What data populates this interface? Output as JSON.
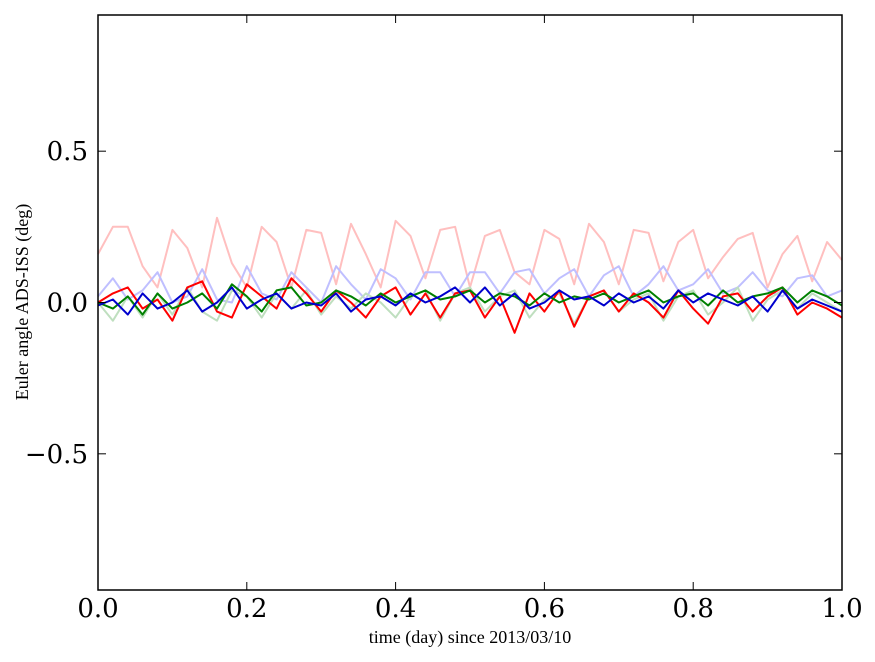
{
  "chart_data": {
    "type": "line",
    "title": "",
    "xlabel": "time (day) since 2013/03/10",
    "ylabel": "Euler angle ADS-ISS (deg)",
    "xlim": [
      0.0,
      1.0
    ],
    "ylim": [
      -0.95,
      0.95
    ],
    "grid": false,
    "legend": "none",
    "x_ticks": [
      0.0,
      0.2,
      0.4,
      0.6,
      0.8,
      1.0
    ],
    "x_tick_labels": [
      "0.0",
      "0.2",
      "0.4",
      "0.6",
      "0.8",
      "1.0"
    ],
    "y_ticks": [
      -0.5,
      0.0,
      0.5
    ],
    "y_tick_labels": [
      "−0.5",
      "0.0",
      "0.5"
    ],
    "x": [
      0.0,
      0.02,
      0.04,
      0.06,
      0.08,
      0.1,
      0.12,
      0.14,
      0.16,
      0.18,
      0.2,
      0.22,
      0.24,
      0.26,
      0.28,
      0.3,
      0.32,
      0.34,
      0.36,
      0.38,
      0.4,
      0.42,
      0.44,
      0.46,
      0.48,
      0.5,
      0.52,
      0.54,
      0.56,
      0.58,
      0.6,
      0.62,
      0.64,
      0.66,
      0.68,
      0.7,
      0.72,
      0.74,
      0.76,
      0.78,
      0.8,
      0.82,
      0.84,
      0.86,
      0.88,
      0.9,
      0.92,
      0.94,
      0.96,
      0.98,
      1.0
    ],
    "series": [
      {
        "color": "#ffbfbf",
        "values": [
          0.16,
          0.25,
          0.25,
          0.12,
          0.05,
          0.24,
          0.18,
          0.05,
          0.28,
          0.13,
          0.05,
          0.25,
          0.2,
          0.05,
          0.24,
          0.23,
          0.06,
          0.26,
          0.16,
          0.05,
          0.27,
          0.22,
          0.08,
          0.24,
          0.25,
          0.05,
          0.22,
          0.24,
          0.1,
          0.06,
          0.24,
          0.21,
          0.06,
          0.26,
          0.2,
          0.06,
          0.24,
          0.23,
          0.07,
          0.2,
          0.24,
          0.08,
          0.15,
          0.21,
          0.23,
          0.05,
          0.16,
          0.22,
          0.07,
          0.2,
          0.14
        ]
      },
      {
        "color": "#bfbfff",
        "values": [
          0.02,
          0.08,
          0.01,
          0.04,
          0.1,
          0.0,
          0.02,
          0.11,
          0.01,
          0.0,
          0.12,
          0.03,
          0.01,
          0.1,
          0.05,
          0.0,
          0.12,
          0.06,
          0.01,
          0.11,
          0.08,
          0.01,
          0.1,
          0.1,
          0.02,
          0.1,
          0.1,
          0.03,
          0.1,
          0.11,
          0.03,
          0.08,
          0.11,
          0.02,
          0.09,
          0.12,
          0.02,
          0.06,
          0.12,
          0.04,
          0.06,
          0.11,
          0.03,
          0.05,
          0.1,
          0.04,
          0.02,
          0.08,
          0.09,
          0.02,
          0.04
        ]
      },
      {
        "color": "#bfdfbf",
        "values": [
          0.0,
          -0.06,
          0.02,
          -0.05,
          0.03,
          -0.04,
          0.05,
          -0.03,
          -0.06,
          0.04,
          0.02,
          -0.05,
          0.03,
          -0.02,
          0.04,
          -0.04,
          0.02,
          -0.02,
          0.03,
          0.0,
          -0.05,
          0.02,
          0.04,
          -0.06,
          0.03,
          0.05,
          -0.03,
          0.02,
          0.04,
          -0.05,
          0.01,
          0.03,
          -0.07,
          0.02,
          0.04,
          -0.03,
          0.01,
          0.03,
          -0.06,
          0.02,
          0.04,
          -0.04,
          0.0,
          0.05,
          -0.06,
          0.01,
          0.04,
          -0.02,
          0.03,
          0.0,
          -0.03
        ]
      },
      {
        "color": "#ff0000",
        "values": [
          0.0,
          0.03,
          0.05,
          -0.02,
          0.01,
          -0.06,
          0.05,
          0.07,
          -0.03,
          -0.05,
          0.06,
          0.02,
          -0.02,
          0.08,
          0.03,
          -0.03,
          0.04,
          0.0,
          -0.05,
          0.02,
          0.05,
          -0.04,
          0.03,
          -0.05,
          0.03,
          0.04,
          -0.05,
          0.02,
          -0.1,
          0.03,
          -0.03,
          0.04,
          -0.08,
          0.02,
          0.04,
          -0.03,
          0.03,
          0.0,
          -0.05,
          0.04,
          -0.02,
          -0.07,
          0.02,
          0.03,
          -0.03,
          0.02,
          0.05,
          -0.04,
          0.0,
          -0.02,
          -0.05
        ]
      },
      {
        "color": "#008000",
        "values": [
          0.0,
          -0.02,
          0.02,
          -0.04,
          0.03,
          -0.02,
          0.0,
          0.03,
          -0.02,
          0.06,
          0.02,
          -0.03,
          0.04,
          0.05,
          -0.01,
          0.0,
          0.04,
          0.02,
          -0.01,
          0.03,
          0.0,
          0.02,
          0.04,
          0.01,
          0.02,
          0.04,
          0.0,
          0.03,
          0.02,
          -0.01,
          0.03,
          0.0,
          0.02,
          0.01,
          0.03,
          0.0,
          0.02,
          0.04,
          0.0,
          0.02,
          0.03,
          -0.01,
          0.04,
          0.0,
          0.02,
          0.03,
          0.05,
          0.0,
          0.04,
          0.02,
          -0.01
        ]
      },
      {
        "color": "#0000cd",
        "values": [
          -0.01,
          0.01,
          -0.04,
          0.03,
          -0.02,
          0.0,
          0.04,
          -0.03,
          0.0,
          0.05,
          -0.02,
          0.01,
          0.03,
          -0.02,
          0.0,
          -0.01,
          0.03,
          -0.03,
          0.01,
          0.02,
          -0.01,
          0.03,
          0.0,
          0.02,
          0.05,
          0.0,
          0.05,
          -0.01,
          0.03,
          -0.02,
          0.0,
          0.04,
          0.01,
          0.02,
          -0.01,
          0.03,
          0.0,
          0.02,
          -0.02,
          0.04,
          0.0,
          0.03,
          0.01,
          -0.01,
          0.02,
          -0.03,
          0.04,
          -0.02,
          0.01,
          -0.01,
          -0.03
        ]
      }
    ]
  }
}
